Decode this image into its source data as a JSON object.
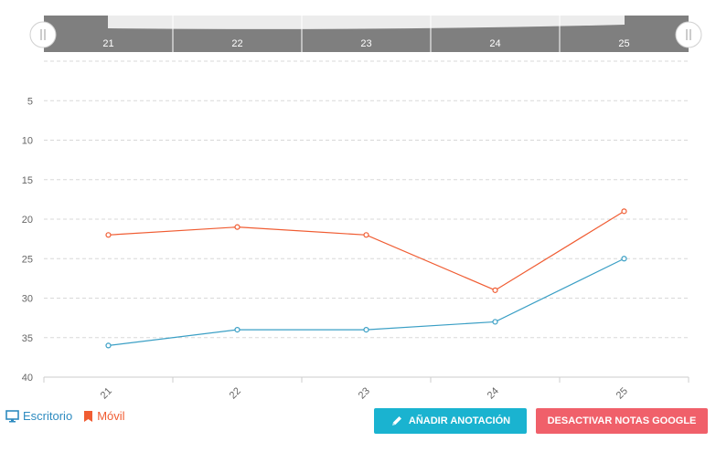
{
  "navigator": {
    "labels": [
      "21",
      "22",
      "23",
      "24",
      "25"
    ]
  },
  "chart_data": {
    "type": "line",
    "categories": [
      "21",
      "22",
      "23",
      "24",
      "25"
    ],
    "series": [
      {
        "name": "Escritorio",
        "values": [
          36,
          34,
          34,
          33,
          25
        ],
        "color": "#3a9fc5"
      },
      {
        "name": "Móvil",
        "values": [
          22,
          21,
          22,
          29,
          19
        ],
        "color": "#f05c32"
      }
    ],
    "yaxis": {
      "ticks": [
        "5",
        "10",
        "15",
        "20",
        "25",
        "30",
        "35",
        "40"
      ],
      "reversed": true,
      "range": [
        0,
        40
      ]
    },
    "grid": true,
    "legend_placement": "bottom-left"
  },
  "legend": {
    "desktop_label": "Escritorio",
    "mobile_label": "Móvil",
    "desktop_color": "#2e8bc0",
    "mobile_color": "#f05c32"
  },
  "buttons": {
    "add_annotation": "AÑADIR ANOTACIÓN",
    "disable_google_notes": "DESACTIVAR NOTAS GOOGLE",
    "add_annotation_color": "#1ab3d0",
    "disable_google_notes_color": "#f0606a"
  },
  "icons": {
    "desktop": "monitor-icon",
    "mobile": "bookmark-icon",
    "pencil": "pencil-icon",
    "handle": "drag-handle-icon"
  }
}
